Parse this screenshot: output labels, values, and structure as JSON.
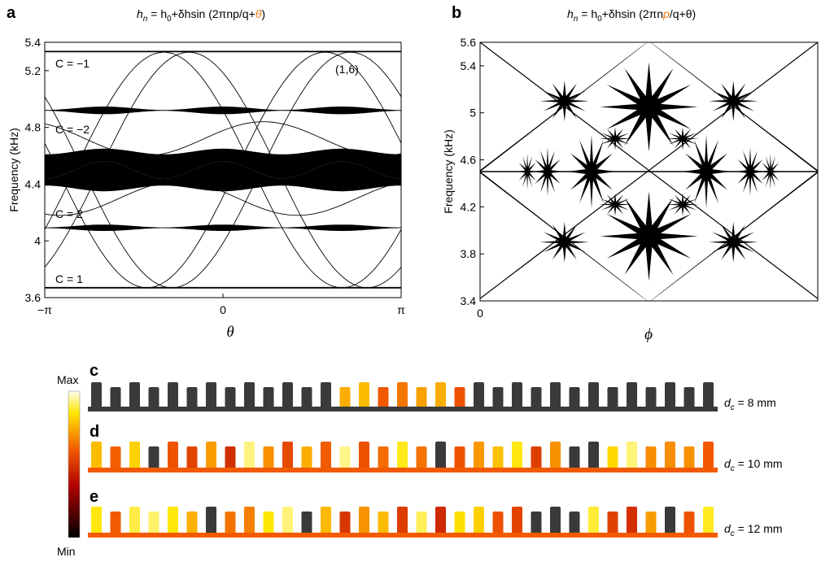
{
  "panel_a": {
    "label": "a",
    "title": [
      "h",
      "n",
      " = h",
      "0",
      "+δh",
      "sin (2πnp/q+",
      "θ",
      ")"
    ],
    "ylabel": "Frequency (kHz)",
    "xlabel": "θ",
    "ylim": [
      3.6,
      5.4
    ],
    "yticks": [
      3.6,
      4,
      4.4,
      4.8,
      5.2,
      5.4
    ],
    "xlim": [
      -3.14159,
      3.14159
    ],
    "xticks": [
      {
        "value": -3.14159,
        "label": "−π"
      },
      0,
      {
        "value": 3.14159,
        "label": "π"
      }
    ],
    "annotations": [
      "C = −1",
      "C = −2",
      "C = 2",
      "C = 1",
      "(1,6)"
    ]
  },
  "panel_b": {
    "label": "b",
    "title": [
      "h",
      "n",
      " = h",
      "0",
      "+δh",
      "sin (2πn",
      "p",
      "/q+θ)"
    ],
    "ylabel": "Frequency (kHz)",
    "xlabel": "ϕ",
    "ylim": [
      3.4,
      5.6
    ],
    "yticks": [
      3.4,
      3.8,
      4.2,
      4.6,
      5,
      5.4,
      5.6
    ],
    "xlim": [
      0,
      1
    ],
    "xticks": [
      0
    ]
  },
  "colorbar": {
    "max": "Max",
    "min": "Min"
  },
  "rows": [
    {
      "label": "c",
      "caption": [
        "d",
        "c",
        " = 8 mm"
      ]
    },
    {
      "label": "d",
      "caption": [
        "d",
        "c",
        " = 10 mm"
      ]
    },
    {
      "label": "e",
      "caption": [
        "d",
        "c",
        " = 12 mm"
      ]
    }
  ]
}
